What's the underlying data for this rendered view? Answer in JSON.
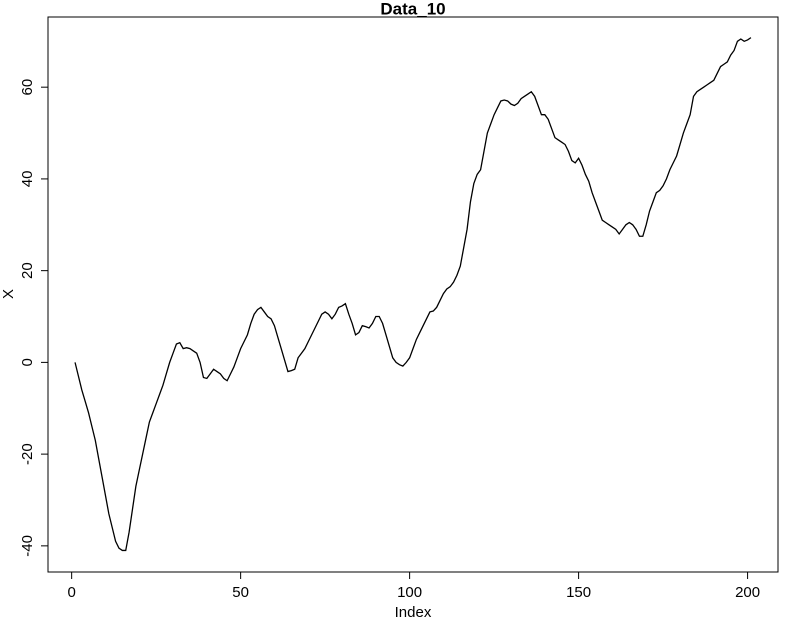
{
  "chart_data": {
    "type": "line",
    "title": "Data_10",
    "x_label": "Index",
    "y_label": "X",
    "color": "#000000",
    "x": [
      1,
      2,
      3,
      4,
      5,
      6,
      7,
      8,
      9,
      10,
      11,
      12,
      13,
      14,
      15,
      16,
      17,
      18,
      19,
      20,
      21,
      22,
      23,
      24,
      25,
      26,
      27,
      28,
      29,
      30,
      31,
      32,
      33,
      34,
      35,
      36,
      37,
      38,
      39,
      40,
      41,
      42,
      43,
      44,
      45,
      46,
      47,
      48,
      49,
      50,
      51,
      52,
      53,
      54,
      55,
      56,
      57,
      58,
      59,
      60,
      61,
      62,
      63,
      64,
      65,
      66,
      67,
      68,
      69,
      70,
      71,
      72,
      73,
      74,
      75,
      76,
      77,
      78,
      79,
      80,
      81,
      82,
      83,
      84,
      85,
      86,
      87,
      88,
      89,
      90,
      91,
      92,
      93,
      94,
      95,
      96,
      97,
      98,
      99,
      100,
      101,
      102,
      103,
      104,
      105,
      106,
      107,
      108,
      109,
      110,
      111,
      112,
      113,
      114,
      115,
      116,
      117,
      118,
      119,
      120,
      121,
      122,
      123,
      124,
      125,
      126,
      127,
      128,
      129,
      130,
      131,
      132,
      133,
      134,
      135,
      136,
      137,
      138,
      139,
      140,
      141,
      142,
      143,
      144,
      145,
      146,
      147,
      148,
      149,
      150,
      151,
      152,
      153,
      154,
      155,
      156,
      157,
      158,
      159,
      160,
      161,
      162,
      163,
      164,
      165,
      166,
      167,
      168,
      169,
      170,
      171,
      172,
      173,
      174,
      175,
      176,
      177,
      178,
      179,
      180,
      181,
      182,
      183,
      184,
      185,
      186,
      187,
      188,
      189,
      190,
      191,
      192,
      193,
      194,
      195,
      196,
      197,
      198,
      199,
      200,
      201
    ],
    "values": [
      0,
      -3,
      -6,
      -8.5,
      -11,
      -14,
      -17,
      -21,
      -25,
      -29,
      -33,
      -36,
      -39,
      -40.5,
      -41,
      -41,
      -37,
      -32,
      -27,
      -23.5,
      -20,
      -16.5,
      -13,
      -11,
      -9,
      -7,
      -5,
      -2.5,
      0,
      2,
      4,
      4.3,
      3,
      3.2,
      3,
      2.5,
      2,
      0,
      -3.3,
      -3.5,
      -2.5,
      -1.5,
      -2,
      -2.5,
      -3.5,
      -4,
      -2.5,
      -1,
      1,
      3,
      4.5,
      6,
      8.5,
      10.5,
      11.5,
      12,
      11,
      10,
      9.5,
      8,
      5.5,
      3,
      0.5,
      -2,
      -1.8,
      -1.5,
      1,
      2,
      3,
      4.5,
      6,
      7.5,
      9,
      10.5,
      11,
      10.5,
      9.5,
      10.5,
      12,
      12.3,
      12.8,
      10.5,
      8.5,
      6,
      6.5,
      8,
      7.8,
      7.5,
      8.5,
      10,
      10,
      8.5,
      6,
      3.5,
      1,
      0,
      -0.5,
      -0.8,
      0,
      1,
      3,
      5,
      6.5,
      8,
      9.5,
      11,
      11.2,
      12,
      13.5,
      15,
      16,
      16.5,
      17.5,
      19,
      21,
      25,
      29,
      35,
      39,
      41,
      42,
      46,
      50,
      52,
      54,
      55.5,
      57,
      57.2,
      57,
      56.3,
      56,
      56.5,
      57.5,
      58,
      58.5,
      59,
      58,
      56,
      54,
      54,
      53,
      51,
      49,
      48.5,
      48,
      47.5,
      46,
      44,
      43.5,
      44.5,
      43,
      41,
      39.5,
      37,
      35,
      33,
      31,
      30.5,
      30,
      29.5,
      29,
      28,
      29,
      30,
      30.5,
      30,
      29,
      27.5,
      27.5,
      30,
      33,
      35,
      37,
      37.5,
      38.5,
      40,
      42,
      43.5,
      45,
      47.5,
      50,
      52,
      54,
      58,
      59,
      59.5,
      60,
      60.5,
      61,
      61.5,
      63,
      64.5,
      65,
      65.5,
      67,
      68,
      70,
      70.5,
      70,
      70.3,
      70.8
    ],
    "xlim": [
      -7,
      209
    ],
    "ylim": [
      -45.7,
      75.3
    ],
    "xticks": [
      0,
      50,
      100,
      150,
      200
    ],
    "yticks": [
      -40,
      -20,
      0,
      20,
      40,
      60
    ]
  }
}
